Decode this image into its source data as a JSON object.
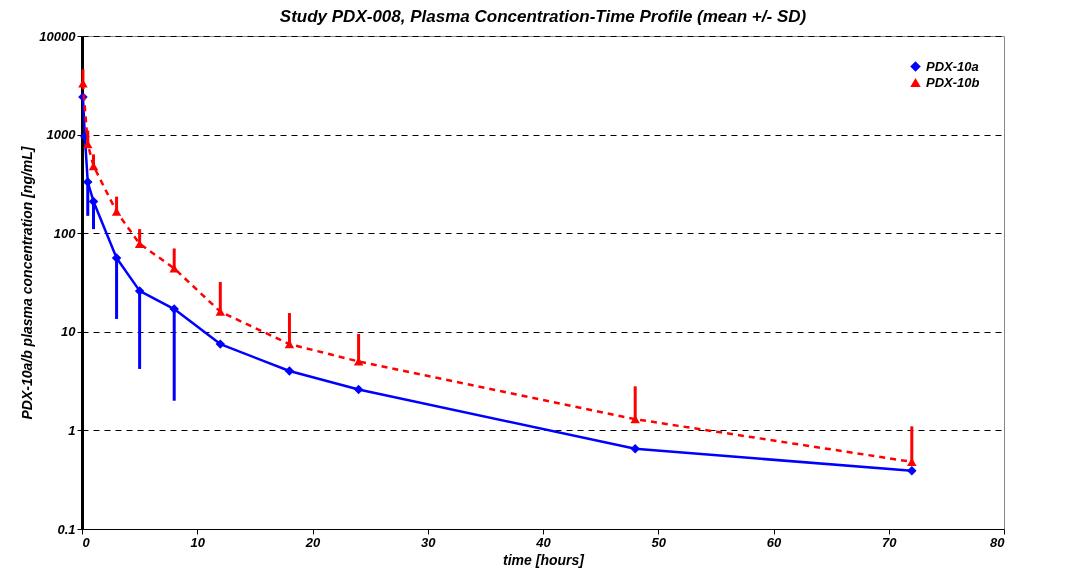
{
  "chart_data": {
    "type": "line",
    "title": "Study PDX-008, Plasma Concentration-Time Profile (mean +/- SD)",
    "xlabel": "time [hours]",
    "ylabel": "PDX-10a/b plasma concentration [ng/mL]",
    "series": [
      {
        "name": "PDX-10a",
        "color": "#0000ff",
        "marker": "diamond",
        "line_style": "solid",
        "x": [
          0.083,
          0.25,
          0.5,
          1,
          3,
          5,
          8,
          12,
          18,
          24,
          48,
          72
        ],
        "values": [
          2400,
          950,
          330,
          210,
          56,
          26,
          17,
          7.5,
          4,
          2.6,
          0.65,
          0.39
        ],
        "errors": [
          null,
          null,
          [
            150,
            330
          ],
          [
            110,
            210
          ],
          [
            13.5,
            56
          ],
          [
            4.2,
            26
          ],
          [
            2,
            17
          ],
          null,
          null,
          null,
          null,
          null
        ]
      },
      {
        "name": "PDX-10b",
        "color": "#ff0000",
        "marker": "triangle",
        "line_style": "dashed",
        "x": [
          0.083,
          0.5,
          1,
          3,
          5,
          8,
          12,
          18,
          24,
          48,
          72
        ],
        "values": [
          3300,
          800,
          480,
          165,
          78,
          44,
          16,
          7.5,
          5,
          1.3,
          0.48
        ],
        "errors": [
          [
            3300,
            4600
          ],
          [
            800,
            1100
          ],
          [
            480,
            630
          ],
          [
            165,
            235
          ],
          [
            78,
            110
          ],
          [
            44,
            70
          ],
          [
            16,
            32
          ],
          [
            7.5,
            15.5
          ],
          [
            5,
            9.5
          ],
          [
            1.3,
            2.8
          ],
          [
            0.48,
            1.1
          ]
        ]
      }
    ],
    "xlim": [
      0,
      80
    ],
    "xticks": [
      0,
      10,
      20,
      30,
      40,
      50,
      60,
      70,
      80
    ],
    "ylim": [
      0.1,
      10000
    ],
    "yticks": [
      0.1,
      1,
      10,
      100,
      1000,
      10000
    ],
    "log": true,
    "grid": "y",
    "legend": "top right"
  }
}
